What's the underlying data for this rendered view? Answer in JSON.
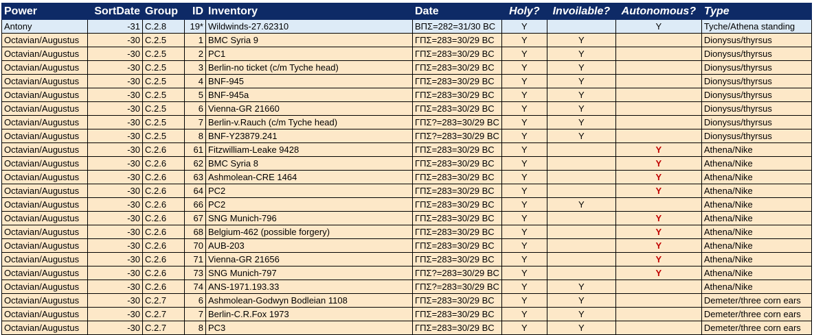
{
  "colors": {
    "header_bg": "#0e2a66",
    "row_blue": "#ddebf7",
    "row_beige": "#fde8c8",
    "flag_red": "#c00000"
  },
  "headers": [
    "Power",
    "SortDate",
    "Group",
    "ID",
    "Inventory",
    "Date",
    "Holy?",
    "Invoilable?",
    "Autonomous?",
    "Type"
  ],
  "rows": [
    [
      "Antony",
      "-31",
      "C.2.8",
      "19*",
      "Wildwinds-27.62310",
      "ΒΠΣ=282=31/30 BC",
      "Y",
      "",
      "Y",
      "Tyche/Athena standing"
    ],
    [
      "Octavian/Augustus",
      "-30",
      "C.2.5",
      "1",
      "BMC Syria 9",
      "ΓΠΣ=283=30/29 BC",
      "Y",
      "Y",
      "",
      "Dionysus/thyrsus"
    ],
    [
      "Octavian/Augustus",
      "-30",
      "C.2.5",
      "2",
      "PC1",
      "ΓΠΣ=283=30/29 BC",
      "Y",
      "Y",
      "",
      "Dionysus/thyrsus"
    ],
    [
      "Octavian/Augustus",
      "-30",
      "C.2.5",
      "3",
      "Berlin-no ticket (c/m  Tyche head)",
      "ΓΠΣ=283=30/29 BC",
      "Y",
      "Y",
      "",
      "Dionysus/thyrsus"
    ],
    [
      "Octavian/Augustus",
      "-30",
      "C.2.5",
      "4",
      "BNF-945",
      "ΓΠΣ=283=30/29 BC",
      "Y",
      "Y",
      "",
      "Dionysus/thyrsus"
    ],
    [
      "Octavian/Augustus",
      "-30",
      "C.2.5",
      "5",
      "BNF-945a",
      "ΓΠΣ=283=30/29 BC",
      "Y",
      "Y",
      "",
      "Dionysus/thyrsus"
    ],
    [
      "Octavian/Augustus",
      "-30",
      "C.2.5",
      "6",
      "Vienna-GR 21660",
      "ΓΠΣ=283=30/29 BC",
      "Y",
      "Y",
      "",
      "Dionysus/thyrsus"
    ],
    [
      "Octavian/Augustus",
      "-30",
      "C.2.5",
      "7",
      "Berlin-v.Rauch (c/m  Tyche head)",
      "ΓΠΣ?=283=30/29 BC",
      "Y",
      "Y",
      "",
      "Dionysus/thyrsus"
    ],
    [
      "Octavian/Augustus",
      "-30",
      "C.2.5",
      "8",
      "BNF-Y23879.241",
      "ΓΠΣ?=283=30/29 BC",
      "Y",
      "Y",
      "",
      "Dionysus/thyrsus"
    ],
    [
      "Octavian/Augustus",
      "-30",
      "C.2.6",
      "61",
      "Fitzwilliam-Leake 9428",
      "ΓΠΣ=283=30/29 BC",
      "Y",
      "",
      "Y",
      "Athena/Nike"
    ],
    [
      "Octavian/Augustus",
      "-30",
      "C.2.6",
      "62",
      "BMC Syria 8",
      "ΓΠΣ=283=30/29 BC",
      "Y",
      "",
      "Y",
      "Athena/Nike"
    ],
    [
      "Octavian/Augustus",
      "-30",
      "C.2.6",
      "63",
      "Ashmolean-CRE 1464",
      "ΓΠΣ=283=30/29 BC",
      "Y",
      "",
      "Y",
      "Athena/Nike"
    ],
    [
      "Octavian/Augustus",
      "-30",
      "C.2.6",
      "64",
      "PC2",
      "ΓΠΣ=283=30/29 BC",
      "Y",
      "",
      "Y",
      "Athena/Nike"
    ],
    [
      "Octavian/Augustus",
      "-30",
      "C.2.6",
      "66",
      "PC2",
      "ΓΠΣ=283=30/29 BC",
      "Y",
      "Y",
      "",
      "Athena/Nike"
    ],
    [
      "Octavian/Augustus",
      "-30",
      "C.2.6",
      "67",
      "SNG Munich-796",
      "ΓΠΣ=283=30/29 BC",
      "Y",
      "",
      "Y",
      "Athena/Nike"
    ],
    [
      "Octavian/Augustus",
      "-30",
      "C.2.6",
      "68",
      "Belgium-462 (possible forgery)",
      "ΓΠΣ=283=30/29 BC",
      "Y",
      "",
      "Y",
      "Athena/Nike"
    ],
    [
      "Octavian/Augustus",
      "-30",
      "C.2.6",
      "70",
      "AUB-203",
      "ΓΠΣ=283=30/29 BC",
      "Y",
      "",
      "Y",
      "Athena/Nike"
    ],
    [
      "Octavian/Augustus",
      "-30",
      "C.2.6",
      "71",
      "Vienna-GR 21656",
      "ΓΠΣ=283=30/29 BC",
      "Y",
      "",
      "Y",
      "Athena/Nike"
    ],
    [
      "Octavian/Augustus",
      "-30",
      "C.2.6",
      "73",
      "SNG Munich-797",
      "ΓΠΣ?=283=30/29 BC",
      "Y",
      "",
      "Y",
      "Athena/Nike"
    ],
    [
      "Octavian/Augustus",
      "-30",
      "C.2.6",
      "74",
      "ANS-1971.193.33",
      "ΓΠΣ?=283=30/29 BC",
      "Y",
      "Y",
      "",
      "Athena/Nike"
    ],
    [
      "Octavian/Augustus",
      "-30",
      "C.2.7",
      "6",
      "Ashmolean-Godwyn Bodleian 1108",
      "ΓΠΣ=283=30/29 BC",
      "Y",
      "Y",
      "",
      "Demeter/three corn ears"
    ],
    [
      "Octavian/Augustus",
      "-30",
      "C.2.7",
      "7",
      "Berlin-C.R.Fox 1973",
      "ΓΠΣ=283=30/29 BC",
      "Y",
      "Y",
      "",
      "Demeter/three corn ears"
    ],
    [
      "Octavian/Augustus",
      "-30",
      "C.2.7",
      "8",
      "PC3",
      "ΓΠΣ=283=30/29 BC",
      "Y",
      "Y",
      "",
      "Demeter/three corn ears"
    ]
  ],
  "autonomous_red_rows": [
    9,
    10,
    11,
    12,
    14,
    15,
    16,
    17,
    18
  ]
}
